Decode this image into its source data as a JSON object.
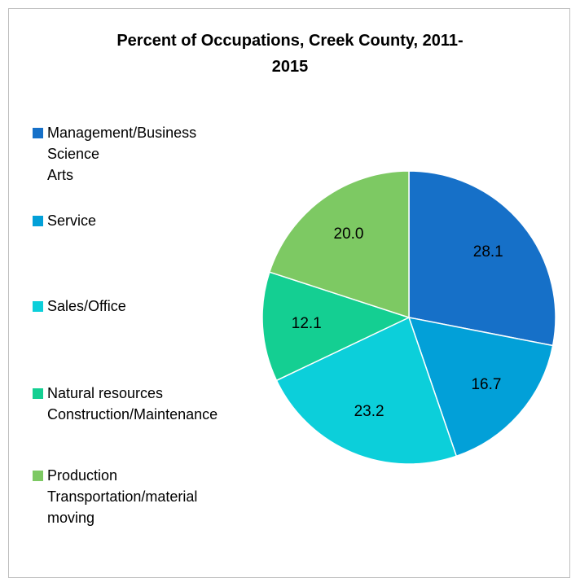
{
  "chart_data": {
    "type": "pie",
    "title": "Percent of Occupations, Creek County, 2011-2015",
    "categories": [
      "Management/Business\nScience\nArts",
      "Service",
      "Sales/Office",
      "Natural resources\nConstruction/Maintenance",
      "Production\nTransportation/material\nmoving"
    ],
    "values": [
      28.1,
      16.7,
      23.2,
      12.1,
      20.0
    ],
    "value_labels": [
      "28.1",
      "16.7",
      "23.2",
      "12.1",
      "20.0"
    ],
    "colors": [
      "#1670c8",
      "#02a0d8",
      "#0ccfda",
      "#14cf92",
      "#7dc963"
    ],
    "legend": "left"
  }
}
